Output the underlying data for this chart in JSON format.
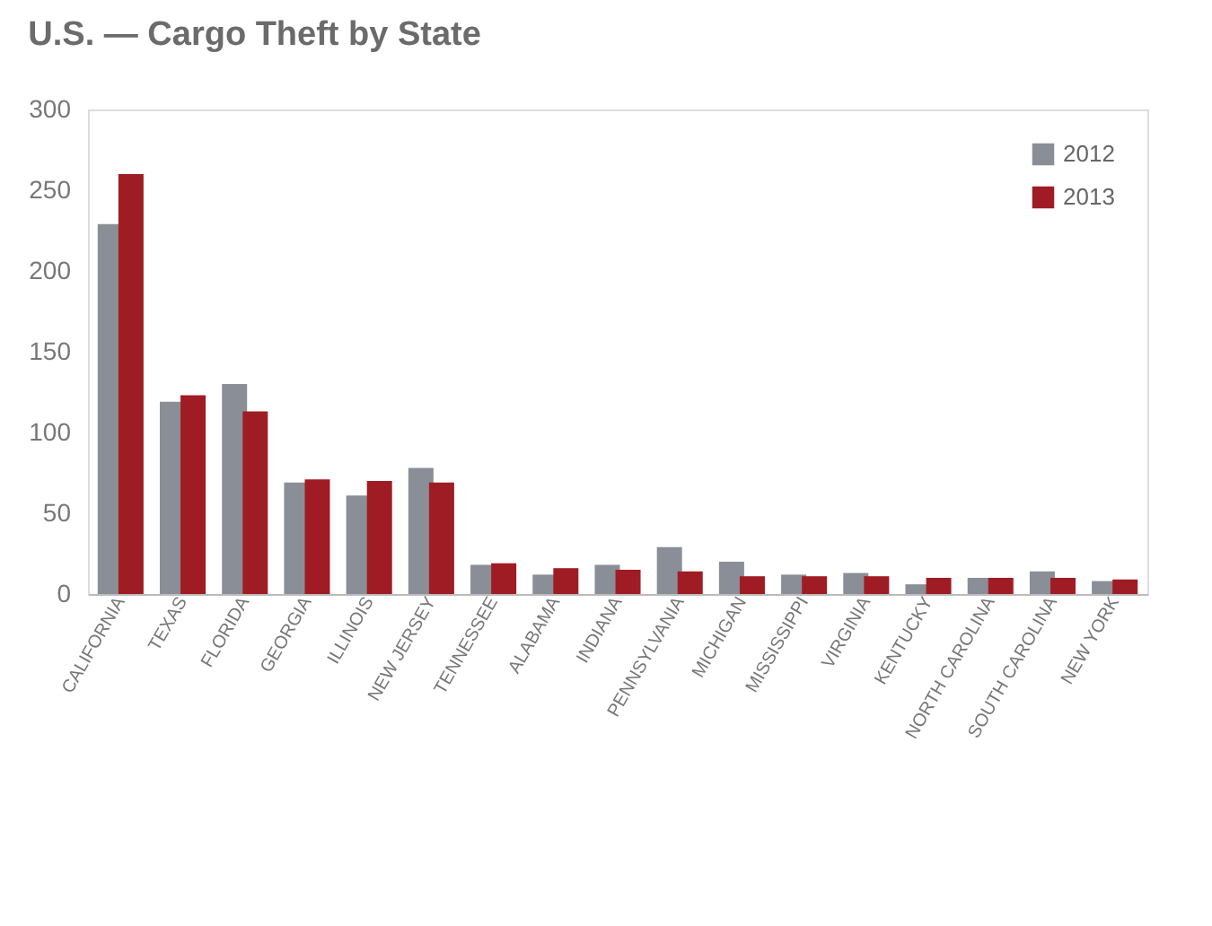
{
  "chart_data": {
    "type": "bar",
    "title": "U.S. — Cargo Theft by State",
    "categories": [
      "CALIFORNIA",
      "TEXAS",
      "FLORIDA",
      "GEORGIA",
      "ILLINOIS",
      "NEW JERSEY",
      "TENNESSEE",
      "ALABAMA",
      "INDIANA",
      "PENNSYLVANIA",
      "MICHIGAN",
      "MISSISSIPPI",
      "VIRGINIA",
      "KENTUCKY",
      "NORTH CAROLINA",
      "SOUTH CAROLINA",
      "NEW YORK"
    ],
    "series": [
      {
        "name": "2012",
        "color": "#8a8e96",
        "values": [
          229,
          119,
          130,
          69,
          61,
          78,
          18,
          12,
          18,
          29,
          20,
          12,
          13,
          6,
          10,
          14,
          8
        ]
      },
      {
        "name": "2013",
        "color": "#a01c24",
        "values": [
          260,
          123,
          113,
          71,
          70,
          69,
          19,
          16,
          15,
          14,
          11,
          11,
          11,
          10,
          10,
          10,
          9
        ]
      }
    ],
    "ylim": [
      0,
      300
    ],
    "yticks": [
      0,
      50,
      100,
      150,
      200,
      250,
      300
    ],
    "grid": false,
    "legend": "top right"
  }
}
